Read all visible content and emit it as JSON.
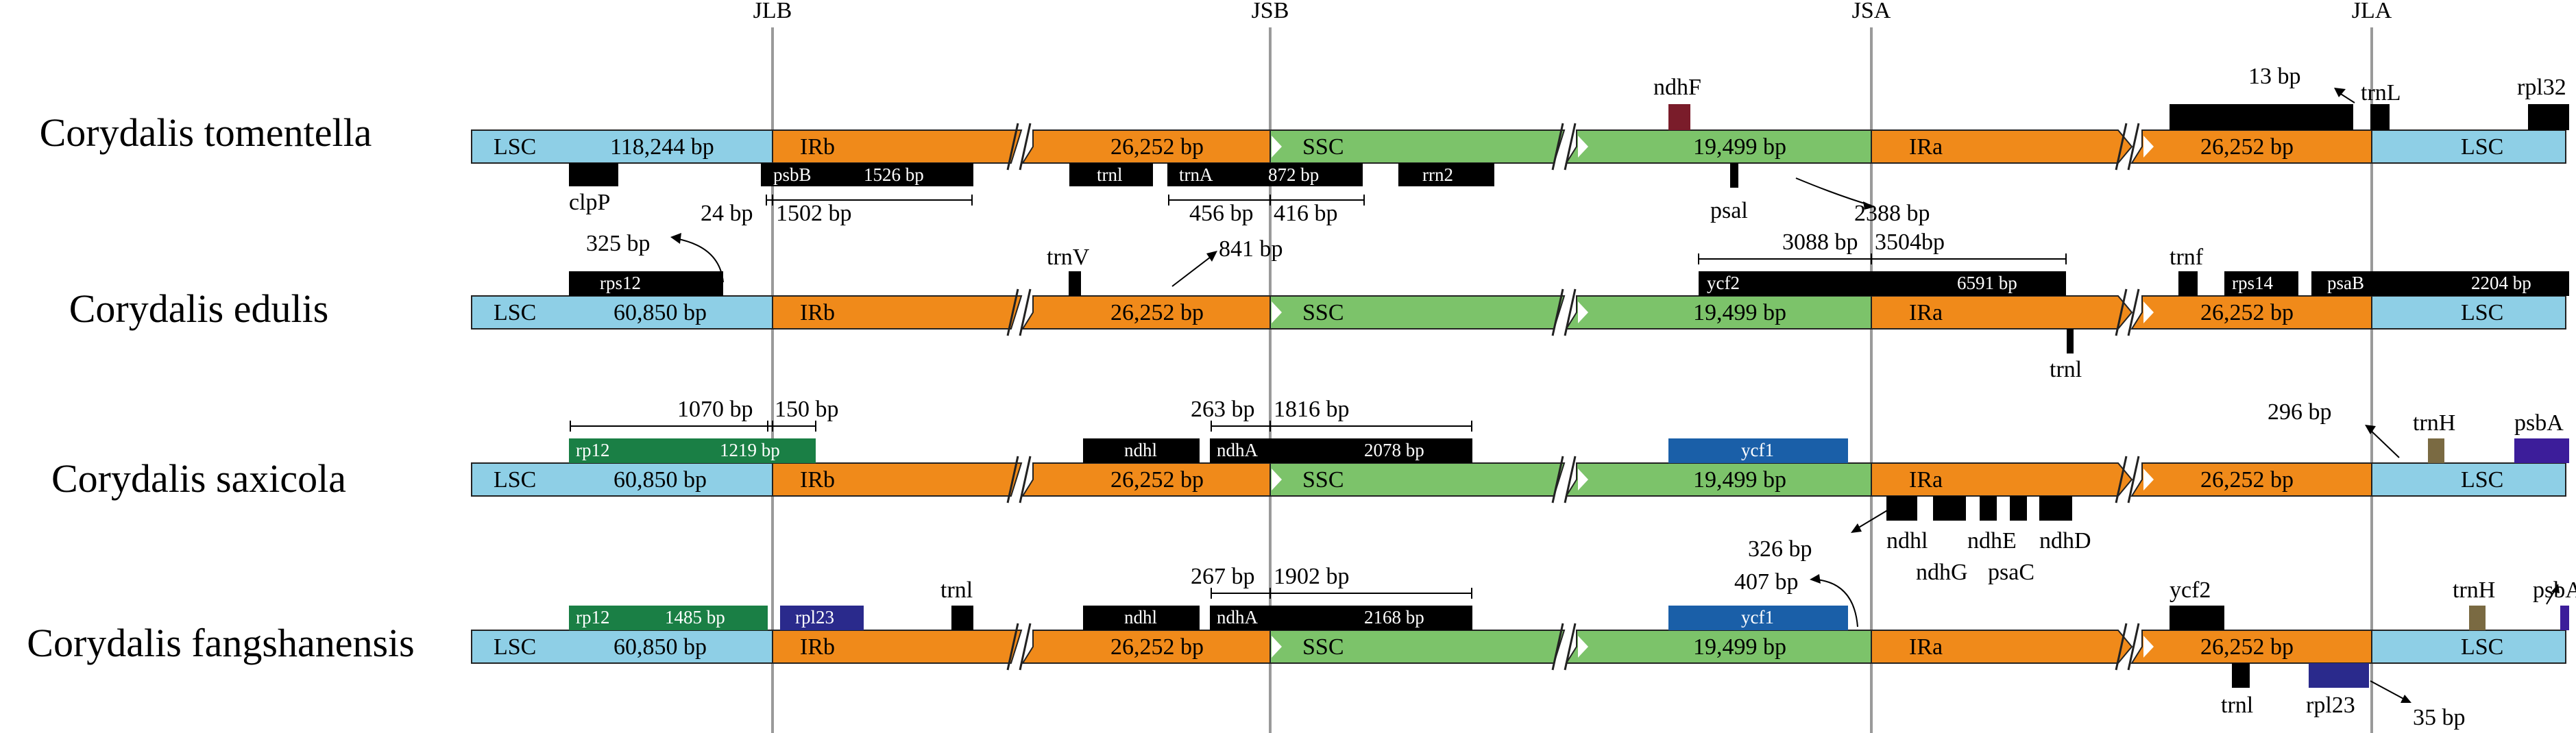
{
  "colors": {
    "lsc": "#8ecfe6",
    "ir": "#f08a1a",
    "ssc": "#7cc36a",
    "gene_black": "#000000",
    "gene_green": "#1a7f45",
    "gene_blue": "#1a5fa8",
    "gene_navy": "#2a2a8c",
    "gene_purple": "#3c1d9a",
    "gene_brown": "#7a6a42",
    "gene_maroon": "#7a1c2a",
    "junction_line": "#9a9a9a"
  },
  "junctions": [
    "JLB",
    "JSB",
    "JSA",
    "JLA"
  ],
  "species": [
    {
      "name": "Corydalis tomentella",
      "segments": [
        "LSC",
        "118,244 bp",
        "IRb",
        "26,252 bp",
        "SSC",
        "19,499 bp",
        "IRa",
        "26,252 bp",
        "LSC"
      ],
      "genes": [
        {
          "label": "",
          "color": "gene_black",
          "icon": "gene-block"
        },
        {
          "label": "psbB",
          "color": "gene_black"
        },
        {
          "label": "1526 bp",
          "color": "gene_black"
        },
        {
          "label": "trnl",
          "color": "gene_black"
        },
        {
          "label": "trnA",
          "color": "gene_black"
        },
        {
          "label": "872 bp",
          "color": "gene_black"
        },
        {
          "label": "rrn2",
          "color": "gene_black"
        },
        {
          "label": "",
          "color": "gene_maroon"
        },
        {
          "label": "",
          "color": "gene_black"
        },
        {
          "label": "",
          "color": "gene_black"
        },
        {
          "label": "",
          "color": "gene_black"
        },
        {
          "label": "",
          "color": "gene_black"
        }
      ],
      "labels": [
        "clpP",
        "ndhF",
        "psal",
        "13 bp",
        "trnL",
        "rpl32"
      ],
      "measures": [
        "24 bp",
        "1502 bp",
        "456 bp",
        "416 bp",
        "2388 bp"
      ]
    },
    {
      "name": "Corydalis edulis",
      "segments": [
        "LSC",
        "60,850 bp",
        "IRb",
        "26,252 bp",
        "SSC",
        "19,499 bp",
        "IRa",
        "26,252 bp",
        "LSC"
      ],
      "genes": [
        {
          "label": "rps12",
          "color": "gene_black"
        },
        {
          "label": "",
          "color": "gene_black"
        },
        {
          "label": "ycf2",
          "color": "gene_black"
        },
        {
          "label": "6591 bp",
          "color": "gene_black"
        },
        {
          "label": "",
          "color": "gene_black"
        },
        {
          "label": "",
          "color": "gene_black"
        },
        {
          "label": "rps14",
          "color": "gene_black"
        },
        {
          "label": "psaB",
          "color": "gene_black"
        },
        {
          "label": "2204 bp",
          "color": "gene_black"
        }
      ],
      "labels": [
        "trnV",
        "trnl",
        "trnf"
      ],
      "measures": [
        "325 bp",
        "841 bp",
        "3088 bp",
        "3504bp"
      ]
    },
    {
      "name": "Corydalis saxicola",
      "segments": [
        "LSC",
        "60,850 bp",
        "IRb",
        "26,252 bp",
        "SSC",
        "19,499 bp",
        "IRa",
        "26,252 bp",
        "LSC"
      ],
      "genes": [
        {
          "label": "rp12",
          "color": "gene_green"
        },
        {
          "label": "1219 bp",
          "color": "gene_green"
        },
        {
          "label": "ndhl",
          "color": "gene_black"
        },
        {
          "label": "ndhA",
          "color": "gene_black"
        },
        {
          "label": "2078 bp",
          "color": "gene_black"
        },
        {
          "label": "ycf1",
          "color": "gene_blue"
        },
        {
          "label": "",
          "color": "gene_brown"
        },
        {
          "label": "",
          "color": "gene_purple"
        }
      ],
      "labels": [
        "trnH",
        "psbA",
        "ndhl",
        "ndhE",
        "ndhD",
        "ndhG",
        "psaC"
      ],
      "measures": [
        "1070 bp",
        "150 bp",
        "263 bp",
        "1816 bp",
        "296 bp",
        "326 bp"
      ]
    },
    {
      "name": "Corydalis fangshanensis",
      "segments": [
        "LSC",
        "60,850 bp",
        "IRb",
        "26,252 bp",
        "SSC",
        "19,499 bp",
        "IRa",
        "26,252 bp",
        "LSC"
      ],
      "genes": [
        {
          "label": "rp12",
          "color": "gene_green"
        },
        {
          "label": "1485 bp",
          "color": "gene_green"
        },
        {
          "label": "rpl23",
          "color": "gene_navy"
        },
        {
          "label": "ndhl",
          "color": "gene_black"
        },
        {
          "label": "ndhA",
          "color": "gene_black"
        },
        {
          "label": "2168 bp",
          "color": "gene_black"
        },
        {
          "label": "ycf1",
          "color": "gene_blue"
        },
        {
          "label": "",
          "color": "gene_black"
        },
        {
          "label": "",
          "color": "gene_brown"
        },
        {
          "label": "",
          "color": "gene_purple"
        },
        {
          "label": "",
          "color": "gene_navy"
        }
      ],
      "labels": [
        "trnl",
        "ycf2",
        "trnH",
        "psbA",
        "trnl",
        "rpl23"
      ],
      "measures": [
        "267 bp",
        "1902 bp",
        "407 bp",
        "35 bp"
      ]
    }
  ]
}
